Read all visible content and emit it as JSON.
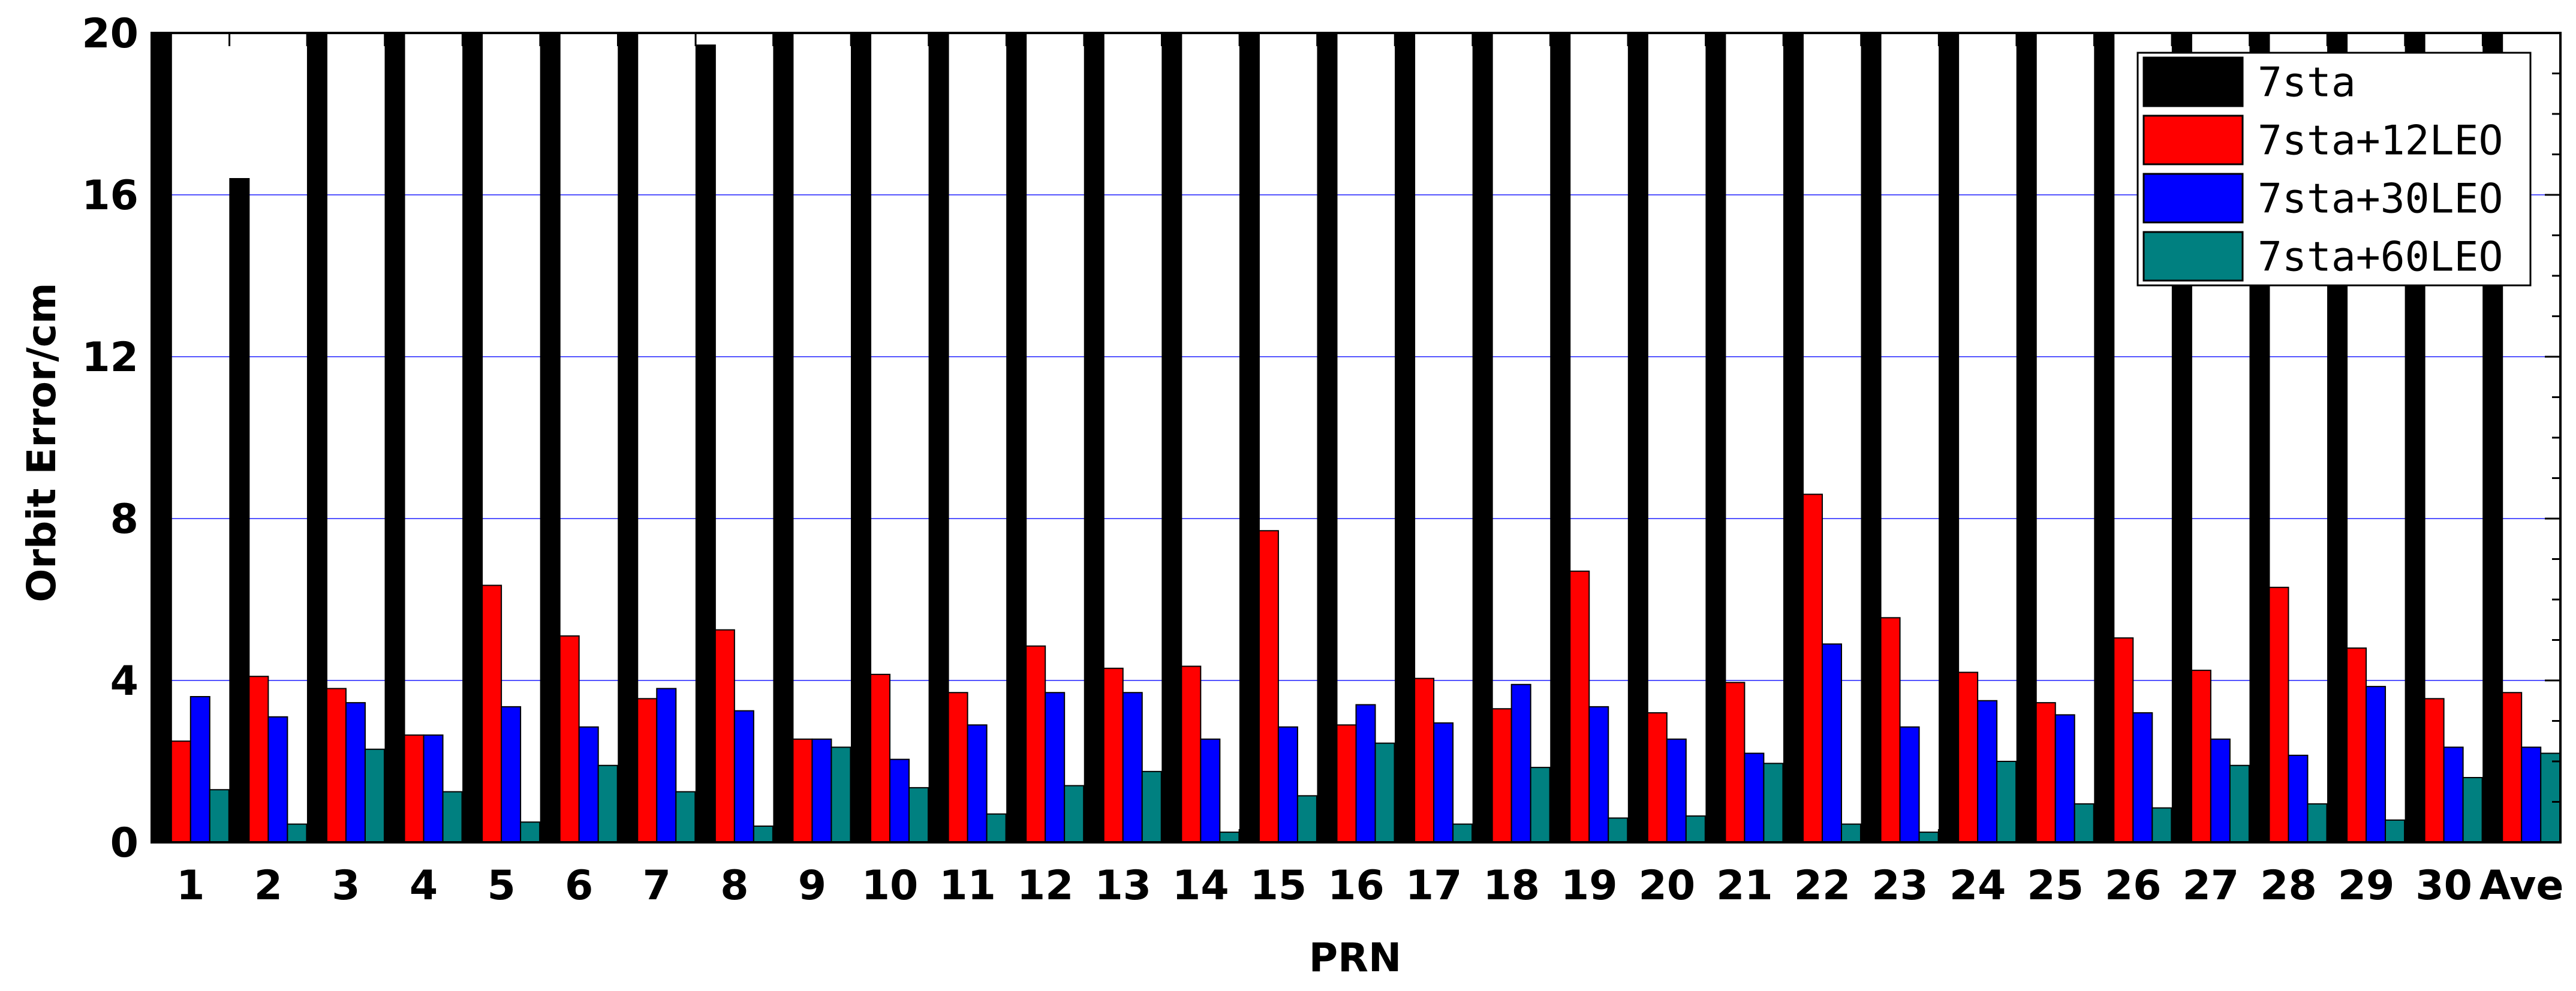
{
  "chart_data": {
    "type": "bar",
    "xlabel": "PRN",
    "ylabel": "Orbit Error/cm",
    "ylim": [
      0,
      20
    ],
    "yticks": [
      "0",
      "4",
      "8",
      "12",
      "16",
      "20"
    ],
    "categories": [
      "1",
      "2",
      "3",
      "4",
      "5",
      "6",
      "7",
      "8",
      "9",
      "10",
      "11",
      "12",
      "13",
      "14",
      "15",
      "16",
      "17",
      "18",
      "19",
      "20",
      "21",
      "22",
      "23",
      "24",
      "25",
      "26",
      "27",
      "28",
      "29",
      "30",
      "Ave"
    ],
    "grid": true,
    "legend_position": "top-right",
    "series": [
      {
        "name": "7sta",
        "color": "#000000",
        "values": [
          20,
          16.4,
          20,
          20,
          20,
          20,
          20,
          19.7,
          20,
          20,
          20,
          20,
          20,
          20,
          20,
          20,
          20,
          20,
          20,
          20,
          20,
          20,
          20,
          20,
          20,
          20,
          20,
          20,
          20,
          20,
          20
        ]
      },
      {
        "name": "7sta+12LEO",
        "color": "#ff0000",
        "values": [
          2.5,
          4.1,
          3.8,
          2.65,
          6.35,
          5.1,
          3.55,
          5.25,
          2.55,
          4.15,
          3.7,
          4.85,
          4.3,
          4.35,
          7.7,
          2.9,
          4.05,
          3.3,
          6.7,
          3.2,
          3.95,
          8.6,
          5.55,
          4.2,
          3.45,
          5.05,
          4.25,
          6.3,
          4.8,
          3.55,
          3.7
        ]
      },
      {
        "name": "7sta+30LEO",
        "color": "#0000ff",
        "values": [
          3.6,
          3.1,
          3.45,
          2.65,
          3.35,
          2.85,
          3.8,
          3.25,
          2.55,
          2.05,
          2.9,
          3.7,
          3.7,
          2.55,
          2.85,
          3.4,
          2.95,
          3.9,
          3.35,
          2.55,
          2.2,
          4.9,
          2.85,
          3.5,
          3.15,
          3.2,
          2.55,
          2.15,
          3.85,
          2.35,
          2.35
        ]
      },
      {
        "name": "7sta+60LEO",
        "color": "#008080",
        "values": [
          1.3,
          0.45,
          2.3,
          1.25,
          0.5,
          1.9,
          1.25,
          0.4,
          2.35,
          1.35,
          0.7,
          1.4,
          1.75,
          0.25,
          1.15,
          2.45,
          0.45,
          1.85,
          0.6,
          0.65,
          1.95,
          0.45,
          0.25,
          2.0,
          0.95,
          0.85,
          1.9,
          0.95,
          0.55,
          1.6,
          2.2
        ]
      }
    ]
  }
}
